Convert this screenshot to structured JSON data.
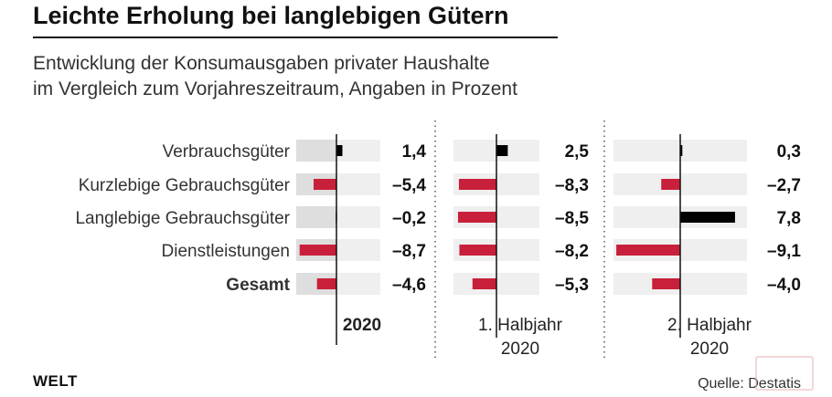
{
  "title": "Leichte Erholung bei langlebigen Gütern",
  "subtitle": {
    "line1": "Entwicklung der Konsumausgaben privater Haushalte",
    "line2": "im Vergleich zum Vorjahreszeitraum, Angaben in Prozent"
  },
  "colors": {
    "positive": "#000000",
    "negative": "#c8203a",
    "track": "#efefef",
    "track_shaded": "#dedede"
  },
  "chart_data": {
    "type": "bar",
    "orientation": "horizontal",
    "categories": [
      "Verbrauchsgüter",
      "Kurzlebige Gebrauchsgüter",
      "Langlebige Gebrauchsgüter",
      "Dienstleistungen",
      "Gesamt"
    ],
    "bold_categories": [
      "Gesamt"
    ],
    "xlim": [
      -9.5,
      9.5
    ],
    "panels": [
      {
        "name": "2020",
        "label_lines": [
          "2020"
        ],
        "bold_label": true,
        "values": [
          1.4,
          -5.4,
          -0.2,
          -8.7,
          -4.6
        ],
        "labels": [
          "1,4",
          "–5,4",
          "–0,2",
          "–8,7",
          "–4,6"
        ]
      },
      {
        "name": "1. Halbjahr 2020",
        "label_lines": [
          "1. Halbjahr",
          "2020"
        ],
        "bold_label": false,
        "values": [
          2.5,
          -8.3,
          -8.5,
          -8.2,
          -5.3
        ],
        "labels": [
          "2,5",
          "–8,3",
          "–8,5",
          "–8,2",
          "–5,3"
        ]
      },
      {
        "name": "2. Halbjahr 2020",
        "label_lines": [
          "2. Halbjahr",
          "2020"
        ],
        "bold_label": false,
        "values": [
          0.3,
          -2.7,
          7.8,
          -9.1,
          -4.0
        ],
        "labels": [
          "0,3",
          "–2,7",
          "7,8",
          "–9,1",
          "–4,0"
        ]
      }
    ]
  },
  "footer": {
    "brand": "WELT",
    "source": "Quelle: Destatis"
  }
}
